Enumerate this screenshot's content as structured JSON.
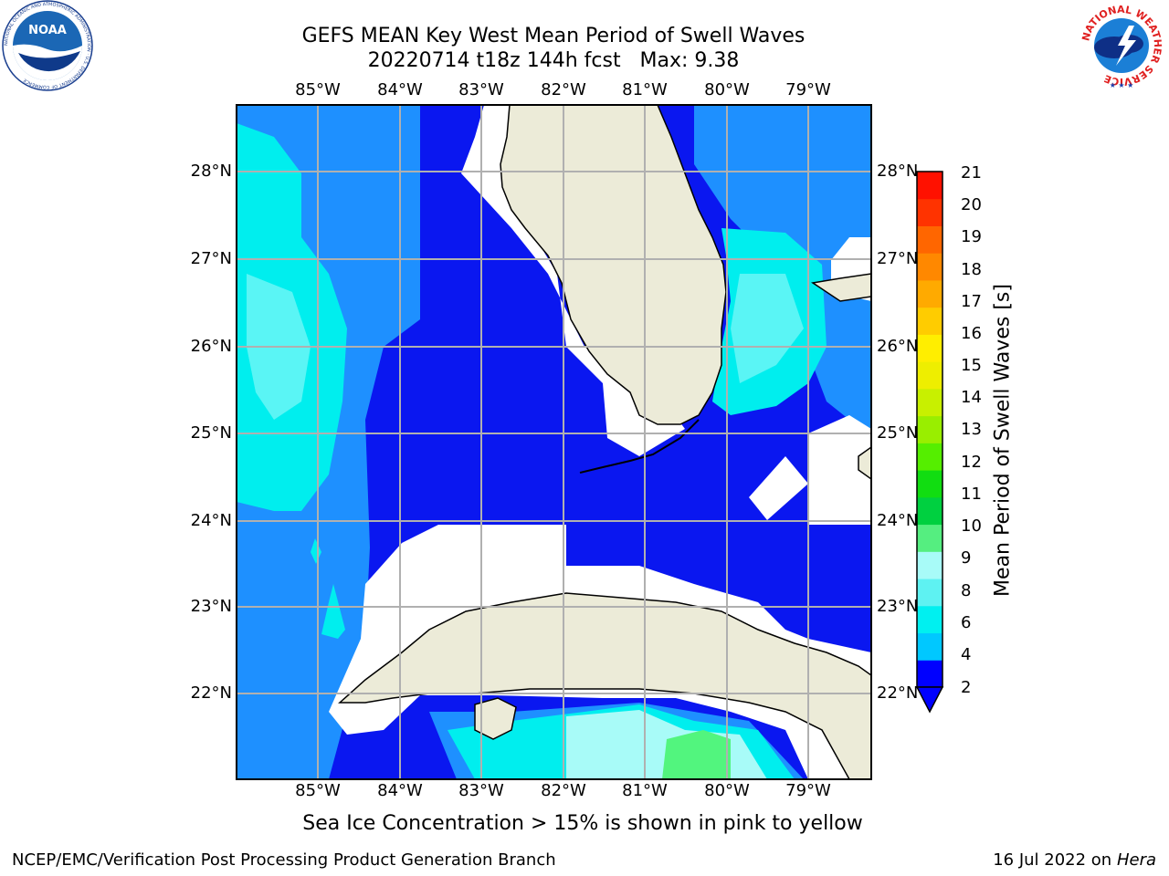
{
  "title": {
    "line1": "GEFS MEAN Key West Mean Period of Swell Waves",
    "line2": "20220714 t18z 144h fcst   Max: 9.38"
  },
  "map": {
    "lon_labels": [
      "85°W",
      "84°W",
      "83°W",
      "82°W",
      "81°W",
      "80°W",
      "79°W"
    ],
    "lat_labels": [
      "28°N",
      "27°N",
      "26°N",
      "25°N",
      "24°N",
      "23°N",
      "22°N"
    ],
    "colors": {
      "land": "#ecebd8",
      "level_2_4": "#0a17f0",
      "level_4_6": "#1e90ff",
      "level_6_8": "#00eeee",
      "level_8_9": "#5af5f5",
      "level_9_10": "#52f57e",
      "no_data": "#ffffff",
      "grid": "#b0b0b0"
    }
  },
  "colorbar": {
    "title": "Mean Period of Swell Waves [s]",
    "ticks": [
      "21",
      "20",
      "19",
      "18",
      "17",
      "16",
      "15",
      "14",
      "13",
      "12",
      "11",
      "10",
      "9",
      "8",
      "6",
      "4",
      "2"
    ],
    "colors": [
      "#0000ff",
      "#00c8ff",
      "#00f0f0",
      "#5ef2f2",
      "#a8fbf8",
      "#55ee80",
      "#00d040",
      "#11dd11",
      "#55ee00",
      "#99ee00",
      "#c8f000",
      "#eeee00",
      "#ffee00",
      "#ffcc00",
      "#ffaa00",
      "#ff8800",
      "#ff6600",
      "#ff3300",
      "#ff1100"
    ]
  },
  "logos": {
    "noaa_text": "NOAA",
    "noaa_ring": "NATIONAL OCEANIC AND ATMOSPHERIC ADMINISTRATION · U.S. DEPARTMENT OF COMMERCE",
    "nws_ring": "NATIONAL WEATHER SERVICE"
  },
  "note": "Sea Ice Concentration > 15% is shown in pink to yellow",
  "footer": {
    "left": "NCEP/EMC/Verification Post Processing Product Generation Branch",
    "right_prefix": "16 Jul 2022 on",
    "right_host": "Hera"
  }
}
